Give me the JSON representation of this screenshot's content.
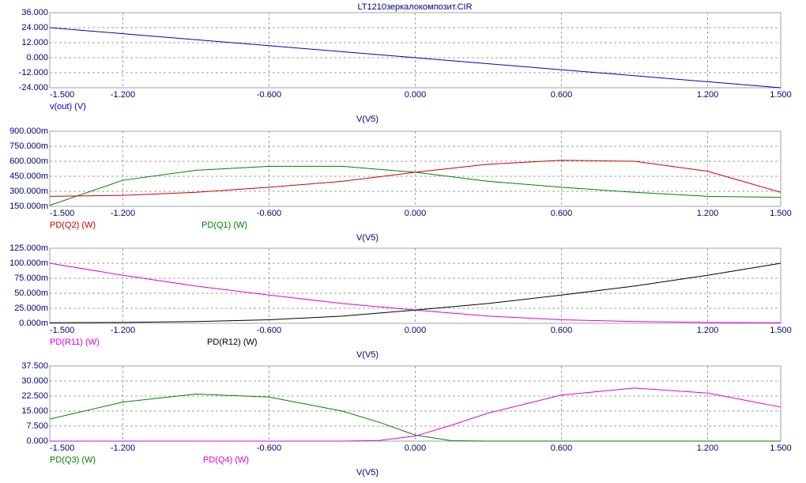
{
  "chart_data": [
    {
      "type": "line",
      "title": "LT1210зеркалокомпозит.CIR",
      "x_label": "V(V5)",
      "x": [
        -1.5,
        -1.2,
        -0.9,
        -0.6,
        -0.3,
        0,
        0.3,
        0.6,
        0.9,
        1.2,
        1.5
      ],
      "series": [
        {
          "name": "v(out) (V)",
          "color": "#0000c8",
          "values": [
            24,
            19.2,
            14.4,
            9.6,
            4.8,
            0,
            -4.8,
            -9.6,
            -14.4,
            -19.2,
            -24
          ]
        }
      ],
      "xlim": [
        -1.5,
        1.5
      ],
      "xticks": [
        {
          "value": -1.5,
          "label": "-1.500"
        },
        {
          "value": -1.2,
          "label": "-1.200"
        },
        {
          "value": -0.6,
          "label": "-0.600"
        },
        {
          "value": 0,
          "label": "0.000"
        },
        {
          "value": 0.6,
          "label": "0.600"
        },
        {
          "value": 1.2,
          "label": "1.200"
        },
        {
          "value": 1.5,
          "label": "1.500"
        }
      ],
      "ylim": [
        -24,
        36
      ],
      "yticks": [
        {
          "value": -24,
          "label": "-24.000"
        },
        {
          "value": -12,
          "label": "-12.000"
        },
        {
          "value": 0,
          "label": "0.000"
        },
        {
          "value": 12,
          "label": "12.000"
        },
        {
          "value": 24,
          "label": "24.000"
        },
        {
          "value": 36,
          "label": "36.000"
        }
      ],
      "grid": true
    },
    {
      "type": "line",
      "x_label": "V(V5)",
      "x": [
        -1.5,
        -1.2,
        -0.9,
        -0.6,
        -0.3,
        0,
        0.3,
        0.6,
        0.9,
        1.2,
        1.5
      ],
      "series": [
        {
          "name": "PD(Q2) (W)",
          "color": "#d00000",
          "values": [
            0.25,
            0.26,
            0.29,
            0.34,
            0.4,
            0.49,
            0.57,
            0.61,
            0.6,
            0.5,
            0.29
          ]
        },
        {
          "name": "PD(Q1) (W)",
          "color": "#008000",
          "values": [
            0.16,
            0.41,
            0.51,
            0.55,
            0.55,
            0.49,
            0.4,
            0.34,
            0.29,
            0.25,
            0.24
          ]
        }
      ],
      "xlim": [
        -1.5,
        1.5
      ],
      "xticks": [
        {
          "value": -1.5,
          "label": "-1.500"
        },
        {
          "value": -1.2,
          "label": "-1.200"
        },
        {
          "value": -0.6,
          "label": "-0.600"
        },
        {
          "value": 0,
          "label": "0.000"
        },
        {
          "value": 0.6,
          "label": "0.600"
        },
        {
          "value": 1.2,
          "label": "1.200"
        },
        {
          "value": 1.5,
          "label": "1.500"
        }
      ],
      "ylim": [
        0.15,
        0.9
      ],
      "yticks": [
        {
          "value": 0.15,
          "label": "150.000m"
        },
        {
          "value": 0.3,
          "label": "300.000m"
        },
        {
          "value": 0.45,
          "label": "450.000m"
        },
        {
          "value": 0.6,
          "label": "600.000m"
        },
        {
          "value": 0.75,
          "label": "750.000m"
        },
        {
          "value": 0.9,
          "label": "900.000m"
        }
      ],
      "grid": true
    },
    {
      "type": "line",
      "x_label": "V(V5)",
      "x": [
        -1.5,
        -1.2,
        -0.9,
        -0.6,
        -0.3,
        0,
        0.3,
        0.6,
        0.9,
        1.2,
        1.5
      ],
      "series": [
        {
          "name": "PD(R11) (W)",
          "color": "#e000e0",
          "values": [
            0.1,
            0.08,
            0.062,
            0.047,
            0.033,
            0.022,
            0.012,
            0.006,
            0.003,
            0.0015,
            0.001
          ]
        },
        {
          "name": "PD(R12) (W)",
          "color": "#000000",
          "values": [
            0.001,
            0.0015,
            0.003,
            0.006,
            0.012,
            0.022,
            0.033,
            0.047,
            0.062,
            0.08,
            0.1
          ]
        }
      ],
      "xlim": [
        -1.5,
        1.5
      ],
      "xticks": [
        {
          "value": -1.5,
          "label": "-1.500"
        },
        {
          "value": -1.2,
          "label": "-1.200"
        },
        {
          "value": -0.6,
          "label": "-0.600"
        },
        {
          "value": 0,
          "label": "0.000"
        },
        {
          "value": 0.6,
          "label": "0.600"
        },
        {
          "value": 1.2,
          "label": "1.200"
        },
        {
          "value": 1.5,
          "label": "1.500"
        }
      ],
      "ylim": [
        0,
        0.125
      ],
      "yticks": [
        {
          "value": 0,
          "label": "0.000m"
        },
        {
          "value": 0.025,
          "label": "25.000m"
        },
        {
          "value": 0.05,
          "label": "50.000m"
        },
        {
          "value": 0.075,
          "label": "75.000m"
        },
        {
          "value": 0.1,
          "label": "100.000m"
        },
        {
          "value": 0.125,
          "label": "125.000m"
        }
      ],
      "grid": true
    },
    {
      "type": "line",
      "x_label": "V(V5)",
      "x": [
        -1.5,
        -1.2,
        -0.9,
        -0.6,
        -0.3,
        -0.15,
        0,
        0.15,
        0.3,
        0.6,
        0.9,
        1.2,
        1.5
      ],
      "series": [
        {
          "name": "PD(Q3) (W)",
          "color": "#008000",
          "values": [
            11,
            19.5,
            23.5,
            22,
            15,
            9.5,
            3,
            0.2,
            0,
            0,
            0,
            0,
            0
          ]
        },
        {
          "name": "PD(Q4) (W)",
          "color": "#e000e0",
          "values": [
            0,
            0,
            0,
            0,
            0,
            0.3,
            2.5,
            8,
            14,
            23,
            26.5,
            24,
            17
          ]
        }
      ],
      "xlim": [
        -1.5,
        1.5
      ],
      "xticks": [
        {
          "value": -1.5,
          "label": "-1.500"
        },
        {
          "value": -1.2,
          "label": "-1.200"
        },
        {
          "value": -0.6,
          "label": "-0.600"
        },
        {
          "value": 0,
          "label": "0.000"
        },
        {
          "value": 0.6,
          "label": "0.600"
        },
        {
          "value": 1.2,
          "label": "1.200"
        },
        {
          "value": 1.5,
          "label": "1.500"
        }
      ],
      "ylim": [
        0,
        37.5
      ],
      "yticks": [
        {
          "value": 0,
          "label": "0.000"
        },
        {
          "value": 7.5,
          "label": "7.500"
        },
        {
          "value": 15,
          "label": "15.000"
        },
        {
          "value": 22.5,
          "label": "22.500"
        },
        {
          "value": 30,
          "label": "30.000"
        },
        {
          "value": 37.5,
          "label": "37.500"
        }
      ],
      "grid": true
    }
  ]
}
